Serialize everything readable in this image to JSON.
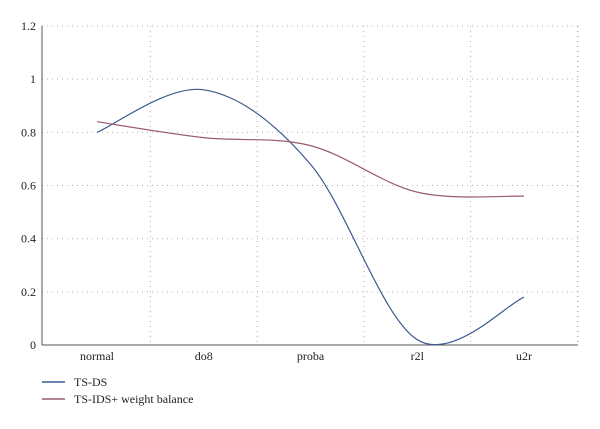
{
  "chart_data": {
    "type": "line",
    "categories": [
      "normal",
      "do8",
      "proba",
      "r2l",
      "u2r"
    ],
    "series": [
      {
        "name": "TS-DS",
        "values": [
          0.8,
          0.96,
          0.68,
          0.02,
          0.18
        ],
        "color": "#3d5a8f"
      },
      {
        "name": "TS-IDS+ weight balance",
        "values": [
          0.84,
          0.78,
          0.75,
          0.575,
          0.56
        ],
        "color": "#9b5a6e"
      }
    ],
    "ylim": [
      0,
      1.2
    ],
    "yticks": [
      0,
      0.2,
      0.4,
      0.6,
      0.8,
      1,
      1.2
    ],
    "ytick_labels": [
      "0",
      "0.2",
      "0.4",
      "0.6",
      "0.8",
      "1",
      "1.2"
    ],
    "grid": true,
    "legend_position": "bottom-left",
    "title": "",
    "xlabel": "",
    "ylabel": ""
  }
}
